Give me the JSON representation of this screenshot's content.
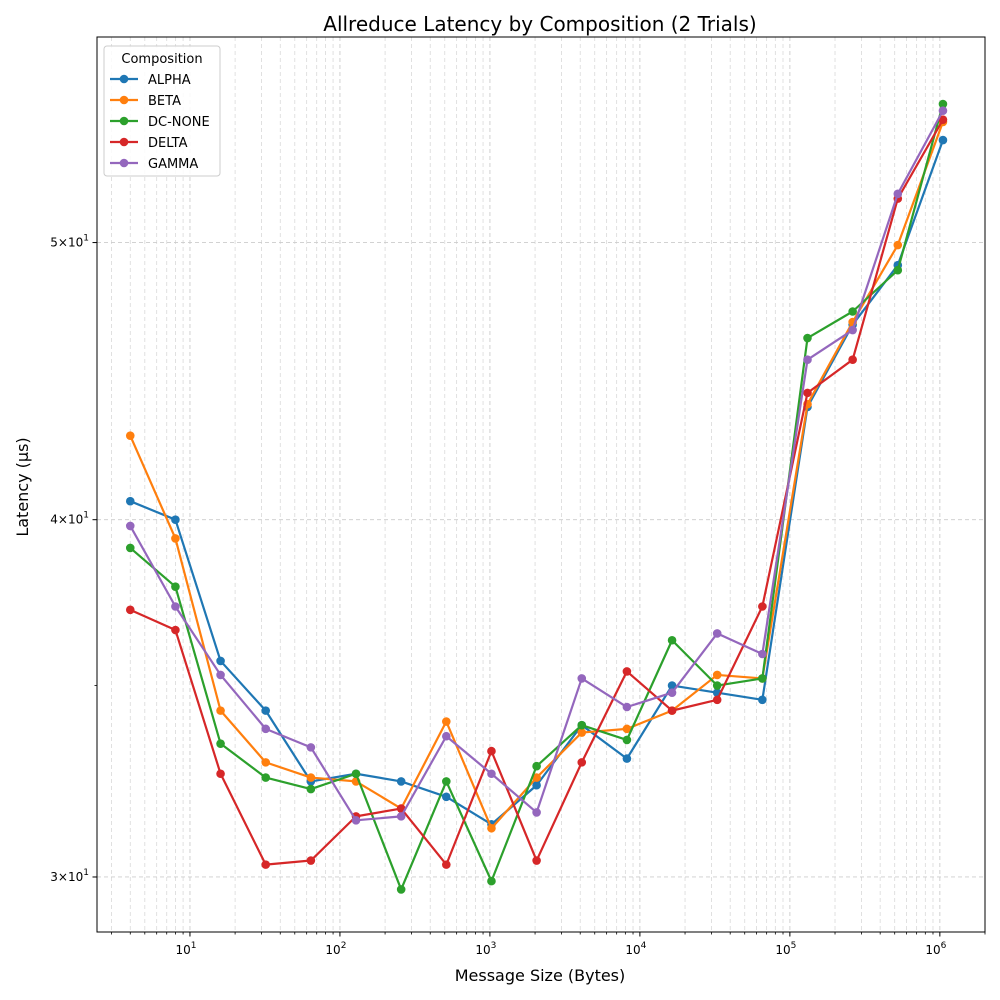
{
  "chart_data": {
    "type": "line",
    "title": "Allreduce Latency by Composition (2 Trials)",
    "xlabel": "Message Size (Bytes)",
    "ylabel": "Latency (µs)",
    "xscale": "log",
    "yscale": "log",
    "xlim": [
      2.4,
      2000000
    ],
    "ylim": [
      28.7,
      59
    ],
    "grid": true,
    "legend": {
      "title": "Composition",
      "placement": "top-left"
    },
    "x_ticks": [
      {
        "value": 10,
        "label": "10",
        "exp": "1"
      },
      {
        "value": 100,
        "label": "10",
        "exp": "2"
      },
      {
        "value": 1000,
        "label": "10",
        "exp": "3"
      },
      {
        "value": 10000,
        "label": "10",
        "exp": "4"
      },
      {
        "value": 100000,
        "label": "10",
        "exp": "5"
      },
      {
        "value": 1000000,
        "label": "10",
        "exp": "6"
      }
    ],
    "y_ticks": [
      {
        "value": 30,
        "label": "3×10",
        "exp": "1"
      },
      {
        "value": 40,
        "label": "4×10",
        "exp": "1"
      },
      {
        "value": 50,
        "label": "5×10",
        "exp": "1"
      }
    ],
    "x": [
      4,
      8,
      16,
      32,
      64,
      128,
      256,
      512,
      1024,
      2048,
      4096,
      8192,
      16384,
      32768,
      65536,
      131072,
      262144,
      524288,
      1048576
    ],
    "series": [
      {
        "name": "ALPHA",
        "color": "#1f77b4",
        "values": [
          40.6,
          40.0,
          35.7,
          34.3,
          32.4,
          32.6,
          32.4,
          32.0,
          31.3,
          32.3,
          33.9,
          33.0,
          35.0,
          34.8,
          34.6,
          43.8,
          46.8,
          49.1,
          54.3
        ]
      },
      {
        "name": "BETA",
        "color": "#ff7f0e",
        "values": [
          42.8,
          39.4,
          34.3,
          32.9,
          32.5,
          32.4,
          31.7,
          34.0,
          31.2,
          32.5,
          33.7,
          33.8,
          34.3,
          35.3,
          35.2,
          43.9,
          46.9,
          49.9,
          55.1
        ]
      },
      {
        "name": "DC-NONE",
        "color": "#2ca02c",
        "values": [
          39.1,
          37.9,
          33.4,
          32.5,
          32.2,
          32.6,
          29.7,
          32.4,
          29.9,
          32.8,
          33.9,
          33.5,
          36.3,
          35.0,
          35.2,
          46.3,
          47.3,
          48.9,
          55.9
        ]
      },
      {
        "name": "DELTA",
        "color": "#d62728",
        "values": [
          37.2,
          36.6,
          32.6,
          30.3,
          30.4,
          31.5,
          31.7,
          30.3,
          33.2,
          30.4,
          32.9,
          35.4,
          34.3,
          34.6,
          37.3,
          44.3,
          45.5,
          51.8,
          55.2
        ]
      },
      {
        "name": "GAMMA",
        "color": "#9467bd",
        "values": [
          39.8,
          37.3,
          35.3,
          33.8,
          33.3,
          31.4,
          31.5,
          33.6,
          32.6,
          31.6,
          35.2,
          34.4,
          34.8,
          36.5,
          35.9,
          45.5,
          46.6,
          52.0,
          55.6
        ]
      }
    ]
  }
}
